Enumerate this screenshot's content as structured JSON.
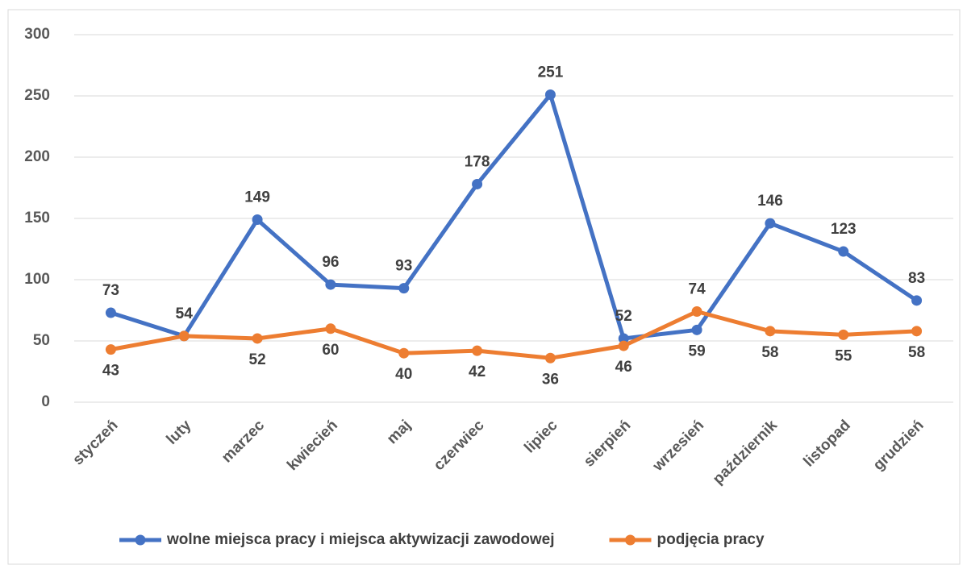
{
  "chart_data": {
    "type": "line",
    "categories": [
      "styczeń",
      "luty",
      "marzec",
      "kwiecień",
      "maj",
      "czerwiec",
      "lipiec",
      "sierpień",
      "wrzesień",
      "październik",
      "listopad",
      "grudzień"
    ],
    "series": [
      {
        "name": "wolne miejsca pracy i miejsca aktywizacji zawodowej",
        "color": "#4472c4",
        "values": [
          73,
          54,
          149,
          96,
          93,
          178,
          251,
          52,
          59,
          146,
          123,
          83
        ]
      },
      {
        "name": "podjęcia pracy",
        "color": "#ed7d31",
        "values": [
          43,
          54,
          52,
          60,
          40,
          42,
          36,
          46,
          74,
          58,
          55,
          58
        ]
      }
    ],
    "ylim": [
      0,
      300
    ],
    "yticks": [
      0,
      50,
      100,
      150,
      200,
      250,
      300
    ],
    "grid": true,
    "legend": "bottom"
  }
}
